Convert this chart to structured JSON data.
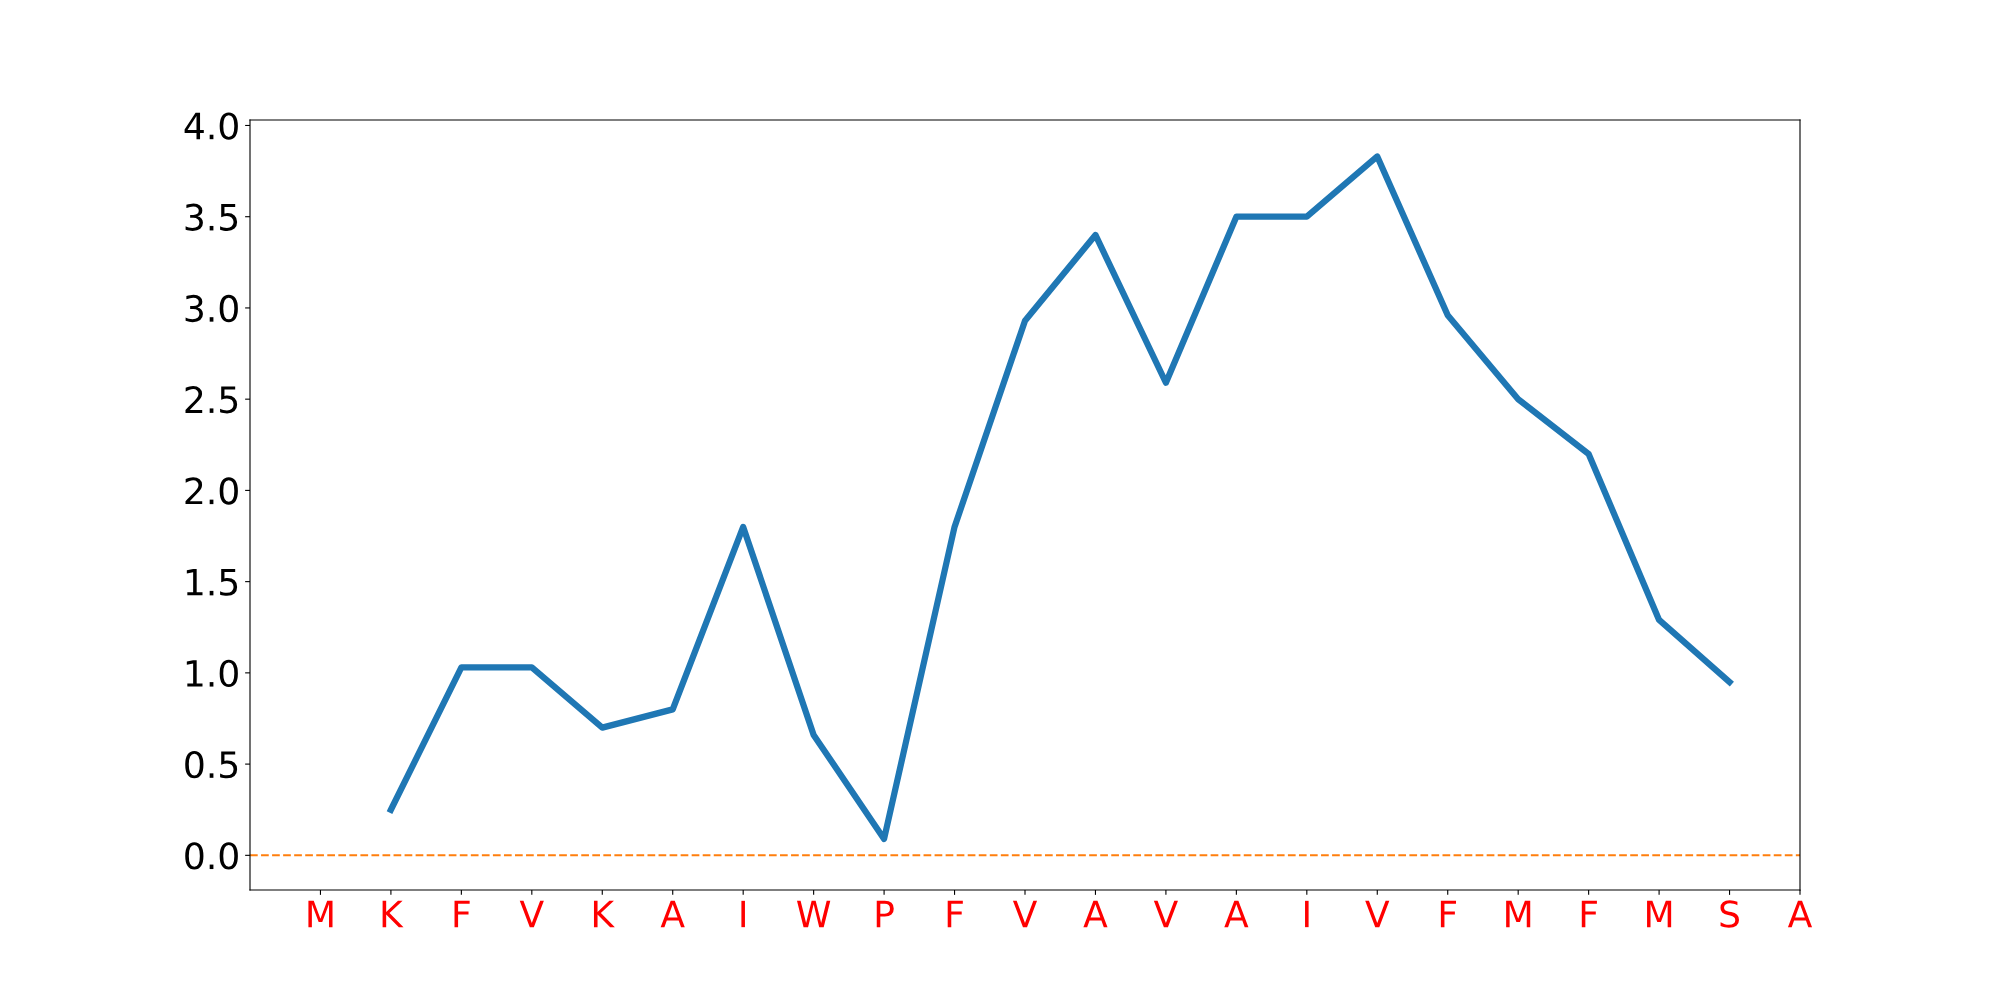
{
  "chart_data": {
    "type": "line",
    "categories": [
      "M",
      "K",
      "F",
      "V",
      "K",
      "A",
      "I",
      "W",
      "P",
      "F",
      "V",
      "A",
      "V",
      "A",
      "I",
      "V",
      "F",
      "M",
      "F",
      "M",
      "S",
      "A"
    ],
    "series": [
      {
        "color": "#1f77b4",
        "values": [
          null,
          0.25,
          1.03,
          1.03,
          0.7,
          0.8,
          1.8,
          0.66,
          0.09,
          1.8,
          2.93,
          3.4,
          2.59,
          3.5,
          3.5,
          3.83,
          2.96,
          2.5,
          2.2,
          1.29,
          0.95,
          null
        ]
      }
    ],
    "ylim": [
      -0.19,
      4.03
    ],
    "yticks": [
      {
        "value": 0,
        "label": "0.0"
      },
      {
        "value": 0.5,
        "label": "0.5"
      },
      {
        "value": 1,
        "label": "1.0"
      },
      {
        "value": 1.5,
        "label": "1.5"
      },
      {
        "value": 2,
        "label": "2.0"
      },
      {
        "value": 2.5,
        "label": "2.5"
      },
      {
        "value": 3,
        "label": "3.0"
      },
      {
        "value": 3.5,
        "label": "3.5"
      },
      {
        "value": 4,
        "label": "4.0"
      }
    ],
    "ref_lines": [
      {
        "axis": "y",
        "value": 0,
        "color": "#ff7f0e",
        "line_style": "dashed"
      }
    ],
    "grid": false,
    "legend": false,
    "marker": "none",
    "line_style": "solid"
  }
}
